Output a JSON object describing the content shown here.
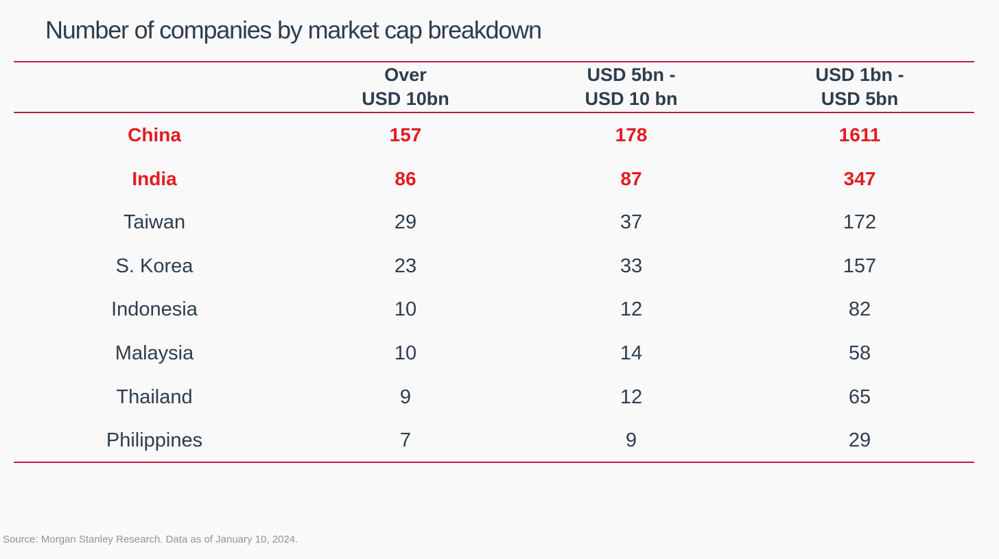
{
  "colors": {
    "accent_rule": "#c11b3a",
    "highlight_text": "#e31b23",
    "body_text": "#2e3d4d",
    "source_text": "#8a96a1",
    "background": "#f9f9f9"
  },
  "chart_data": {
    "type": "table",
    "title": "Number of companies by market cap breakdown",
    "columns": [
      {
        "line1": "Over",
        "line2": "USD 10bn"
      },
      {
        "line1": "USD 5bn -",
        "line2": "USD 10 bn"
      },
      {
        "line1": "USD 1bn -",
        "line2": "USD 5bn"
      }
    ],
    "rows": [
      {
        "country": "China",
        "highlight": true,
        "values": [
          "157",
          "178",
          "1611"
        ]
      },
      {
        "country": "India",
        "highlight": true,
        "values": [
          "86",
          "87",
          "347"
        ]
      },
      {
        "country": "Taiwan",
        "highlight": false,
        "values": [
          "29",
          "37",
          "172"
        ]
      },
      {
        "country": "S. Korea",
        "highlight": false,
        "values": [
          "23",
          "33",
          "157"
        ]
      },
      {
        "country": "Indonesia",
        "highlight": false,
        "values": [
          "10",
          "12",
          "82"
        ]
      },
      {
        "country": "Malaysia",
        "highlight": false,
        "values": [
          "10",
          "14",
          "58"
        ]
      },
      {
        "country": "Thailand",
        "highlight": false,
        "values": [
          "9",
          "12",
          "65"
        ]
      },
      {
        "country": "Philippines",
        "highlight": false,
        "values": [
          "7",
          "9",
          "29"
        ]
      }
    ],
    "source": "Source: Morgan Stanley Research. Data as of January 10, 2024."
  }
}
